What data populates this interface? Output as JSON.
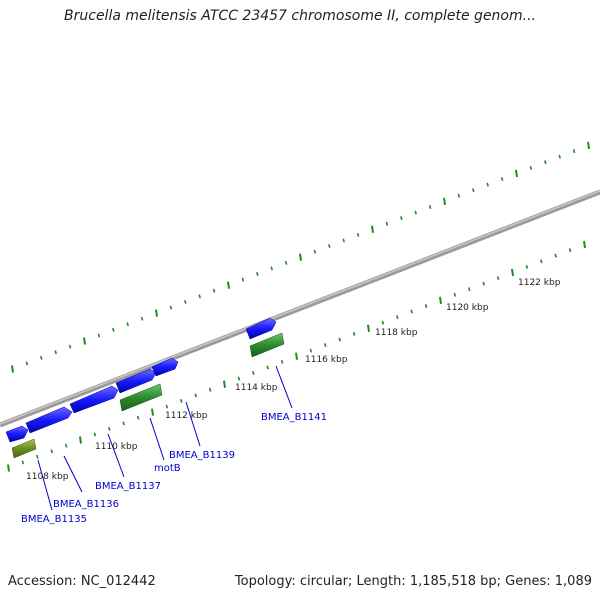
{
  "title": "Brucella melitensis ATCC 23457 chromosome II, complete genom...",
  "footer": {
    "accession": "Accession: NC_012442",
    "summary": "Topology: circular; Length: 1,185,518 bp; Genes: 1,089"
  },
  "scale": {
    "labels": [
      "1108 kbp",
      "1110 kbp",
      "1112 kbp",
      "1114 kbp",
      "1116 kbp",
      "1118 kbp",
      "1120 kbp",
      "1122 kbp"
    ]
  },
  "genes": [
    {
      "name": "BMEA_B1135",
      "color": "#0000cc"
    },
    {
      "name": "BMEA_B1136",
      "color": "#0000cc"
    },
    {
      "name": "BMEA_B1137",
      "color": "#0000cc"
    },
    {
      "name": "motB",
      "color": "#0000cc"
    },
    {
      "name": "BMEA_B1139",
      "color": "#0000cc"
    },
    {
      "name": "BMEA_B1141",
      "color": "#0000cc"
    }
  ],
  "colors": {
    "forward_gene": "#1a1aff",
    "cds_green": "#2e8b2e",
    "cds_olive": "#6b8e23",
    "backbone": "#808080",
    "tick": "#228b22",
    "label_link": "#0000cc"
  }
}
